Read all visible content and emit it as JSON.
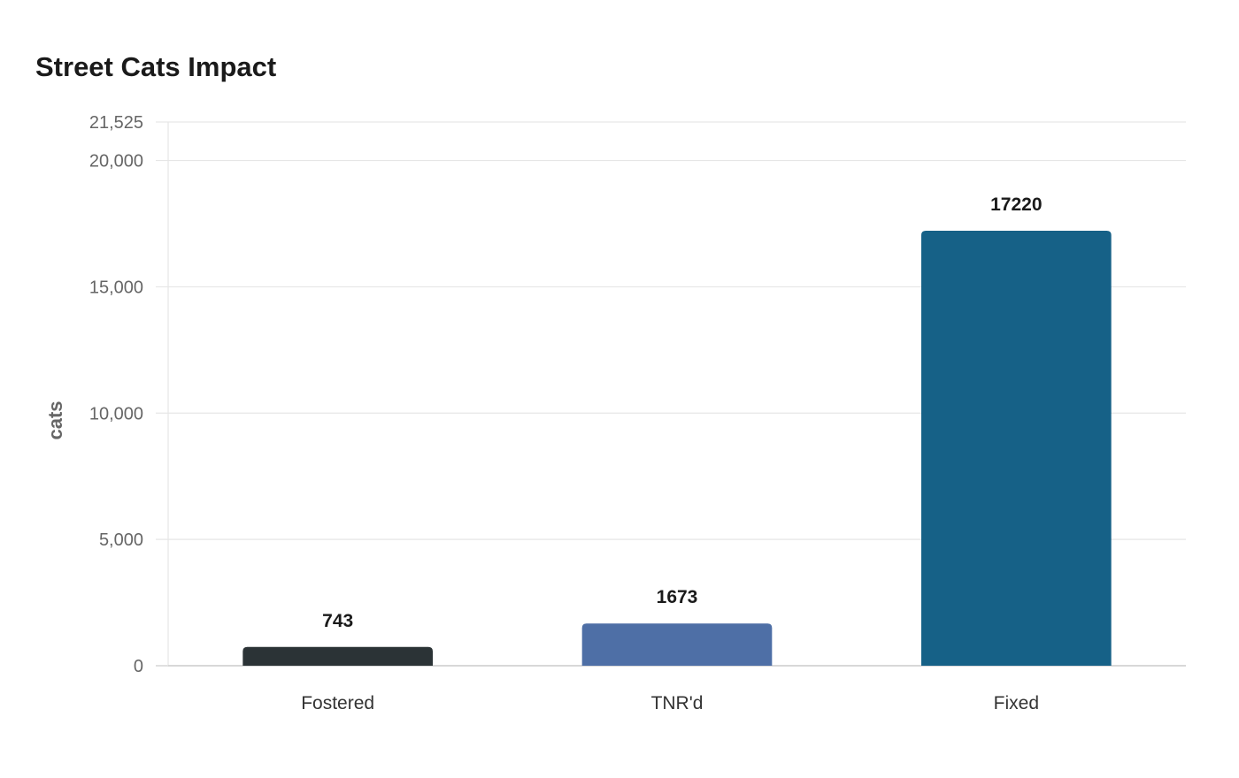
{
  "chart_data": {
    "type": "bar",
    "title": "Street Cats Impact",
    "ylabel": "cats",
    "xlabel": "",
    "categories": [
      "Fostered",
      "TNR'd",
      "Fixed"
    ],
    "values": [
      743,
      1673,
      17220
    ],
    "colors": [
      "#2b3336",
      "#4e6fa6",
      "#166187"
    ],
    "ylim": [
      0,
      21525
    ],
    "yticks": [
      0,
      5000,
      10000,
      15000,
      20000,
      21525
    ],
    "ytick_labels": [
      "0",
      "5,000",
      "10,000",
      "15,000",
      "20,000",
      "21,525"
    ],
    "data_labels": [
      "743",
      "1673",
      "17220"
    ],
    "grid": true,
    "legend": "none"
  }
}
